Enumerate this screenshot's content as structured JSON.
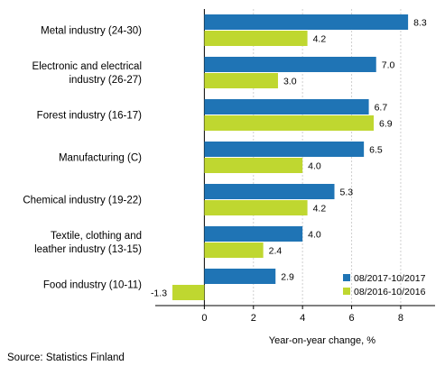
{
  "chart_data": {
    "type": "bar",
    "orientation": "horizontal",
    "categories": [
      "Metal industry (24-30)",
      "Electronic and electrical\nindustry (26-27)",
      "Forest industry (16-17)",
      "Manufacturing (C)",
      "Chemical industry (19-22)",
      "Textile, clothing and\nleather industry (13-15)",
      "Food industry (10-11)"
    ],
    "series": [
      {
        "name": "08/2017-10/2017",
        "color": "#1f74b5",
        "values": [
          8.3,
          7.0,
          6.7,
          6.5,
          5.3,
          4.0,
          2.9
        ],
        "labels": [
          "8.3",
          "7.0",
          "6.7",
          "6.5",
          "5.3",
          "4.0",
          "2.9"
        ]
      },
      {
        "name": "08/2016-10/2016",
        "color": "#bfd730",
        "values": [
          4.2,
          3.0,
          6.9,
          4.0,
          4.2,
          2.4,
          -1.3
        ],
        "labels": [
          "4.2",
          "3.0",
          "6.9",
          "4.0",
          "4.2",
          "2.4",
          "-1.3"
        ]
      }
    ],
    "xlabel": "Year-on-year change, %",
    "ylabel": "",
    "xlim": [
      -2,
      9.4
    ],
    "xticks": [
      0,
      2,
      4,
      6,
      8
    ],
    "xtick_labels": [
      "0",
      "2",
      "4",
      "6",
      "8"
    ],
    "grid": "vertical",
    "legend": "bottom-right"
  },
  "footer": {
    "source": "Source: Statistics Finland"
  }
}
